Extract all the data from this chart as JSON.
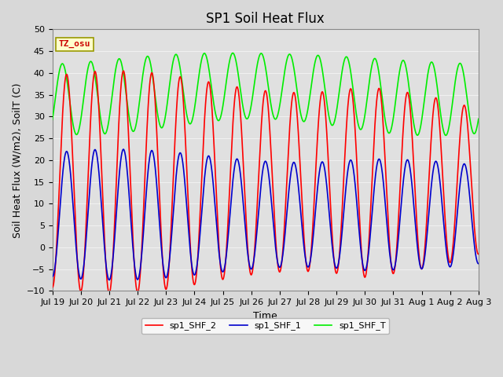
{
  "title": "SP1 Soil Heat Flux",
  "ylabel": "Soil Heat Flux (W/m2), SoilT (C)",
  "xlabel": "Time",
  "ylim": [
    -10,
    50
  ],
  "yticks": [
    -10,
    -5,
    0,
    5,
    10,
    15,
    20,
    25,
    30,
    35,
    40,
    45,
    50
  ],
  "xtick_labels": [
    "Jul 19",
    "Jul 20",
    "Jul 21",
    "Jul 22",
    "Jul 23",
    "Jul 24",
    "Jul 25",
    "Jul 26",
    "Jul 27",
    "Jul 28",
    "Jul 29",
    "Jul 30",
    "Jul 31",
    "Aug 1",
    "Aug 2",
    "Aug 3"
  ],
  "legend_labels": [
    "sp1_SHF_2",
    "sp1_SHF_1",
    "sp1_SHF_T"
  ],
  "line_colors": [
    "#ff0000",
    "#0000cc",
    "#00ee00"
  ],
  "tz_label": "TZ_osu",
  "fig_bg_color": "#d8d8d8",
  "plot_bg_color": "#e0e0e0",
  "grid_color": "#f0f0f0",
  "title_fontsize": 12,
  "axis_label_fontsize": 9,
  "tick_fontsize": 8,
  "linewidth": 1.2
}
